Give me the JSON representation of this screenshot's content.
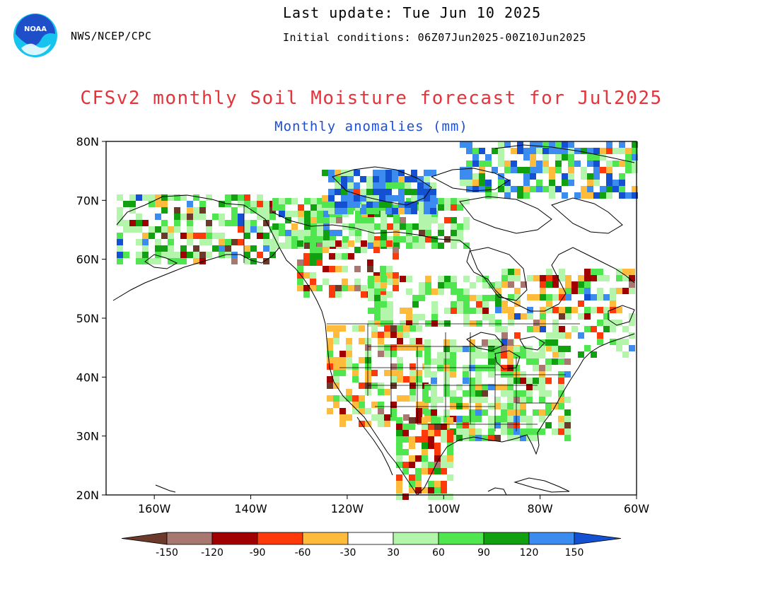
{
  "header": {
    "agency": "NWS/NCEP/CPC",
    "last_update": "Last update: Tue Jun 10 2025",
    "initial_conditions": "Initial conditions: 06Z07Jun2025-00Z10Jun2025",
    "logo_text": "NOAA"
  },
  "title": "CFSv2 monthly Soil Moisture forecast for Jul2025",
  "subtitle": "Monthly anomalies (mm)",
  "map": {
    "lat_labels": [
      "80N",
      "70N",
      "60N",
      "50N",
      "40N",
      "30N",
      "20N"
    ],
    "lon_labels": [
      "160W",
      "140W",
      "120W",
      "100W",
      "80W",
      "60W"
    ],
    "lat_range": [
      20,
      80
    ],
    "lon_range": [
      -170,
      -60
    ]
  },
  "colorbar": {
    "labels": [
      "-150",
      "-120",
      "-90",
      "-60",
      "-30",
      "30",
      "60",
      "90",
      "120",
      "150"
    ],
    "colors": [
      "#6b3a2a",
      "#a87870",
      "#a00000",
      "#ff3a0a",
      "#ffbc3c",
      "#ffffff",
      "#b4f5ac",
      "#50e650",
      "#10a010",
      "#3c8cf0",
      "#1450d2"
    ]
  },
  "colors": {
    "title": "#e5333b",
    "subtitle": "#1d4fd8",
    "noaa_blue": "#1e4fc8",
    "noaa_cyan": "#17c3ef"
  }
}
